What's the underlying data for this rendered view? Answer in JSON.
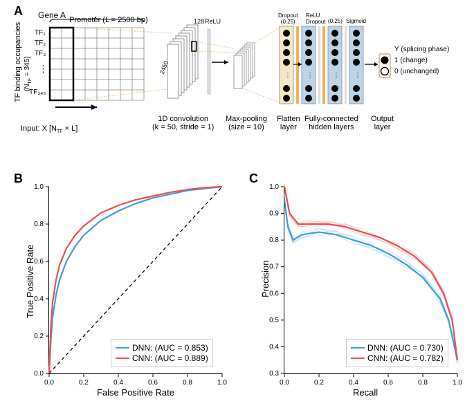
{
  "panelA": {
    "label": "A",
    "gene": "Gene A",
    "promoter": "Promoter (L = 2500 bp)",
    "y_axis_label": "TF binding occupancies\n(N_TF = 345)",
    "tf_rows": [
      "TF₁",
      "TF₂",
      "TF₃",
      "⋮",
      "TF₃₄₅"
    ],
    "input_label": "Input: X [N_TF × L]",
    "relu": "ReLU",
    "conv_dim1": "2450",
    "conv_dim2": "128",
    "conv_label": "1D convolution\n(k = 50, stride = 1)",
    "pool_label": "Max-pooling\n(size = 10)",
    "top_labels": [
      "Dropout\n(0.25)",
      "ReLU\nDropout",
      "(0.25)",
      "Sigmoid"
    ],
    "stage_labels": [
      "Flatten\nlayer",
      "Fully-connected\nhidden layers",
      "Output\nlayer"
    ],
    "output_y": "Y (splicing phase)",
    "output_1": "1 (change)",
    "output_0": "0 (unchanged)"
  },
  "panelB": {
    "label": "B",
    "xlabel": "False Positive Rate",
    "ylabel": "True Positive Rate",
    "xlim": [
      0,
      1
    ],
    "ylim": [
      0,
      1
    ],
    "ticks": [
      0.0,
      0.2,
      0.4,
      0.6,
      0.8,
      1.0
    ],
    "dnn": {
      "color": "#3e9cdf",
      "label": "DNN: (AUC = 0.853)",
      "points": [
        [
          0,
          0
        ],
        [
          0.01,
          0.18
        ],
        [
          0.02,
          0.3
        ],
        [
          0.04,
          0.42
        ],
        [
          0.06,
          0.5
        ],
        [
          0.1,
          0.6
        ],
        [
          0.15,
          0.68
        ],
        [
          0.2,
          0.74
        ],
        [
          0.3,
          0.82
        ],
        [
          0.4,
          0.87
        ],
        [
          0.5,
          0.91
        ],
        [
          0.6,
          0.94
        ],
        [
          0.7,
          0.96
        ],
        [
          0.8,
          0.98
        ],
        [
          0.9,
          0.99
        ],
        [
          1.0,
          1.0
        ]
      ]
    },
    "cnn": {
      "color": "#ee4d4d",
      "label": "CNN: (AUC = 0.889)",
      "points": [
        [
          0,
          0
        ],
        [
          0.01,
          0.25
        ],
        [
          0.02,
          0.38
        ],
        [
          0.04,
          0.5
        ],
        [
          0.06,
          0.58
        ],
        [
          0.1,
          0.67
        ],
        [
          0.15,
          0.74
        ],
        [
          0.2,
          0.79
        ],
        [
          0.3,
          0.86
        ],
        [
          0.4,
          0.9
        ],
        [
          0.5,
          0.93
        ],
        [
          0.6,
          0.95
        ],
        [
          0.7,
          0.97
        ],
        [
          0.8,
          0.985
        ],
        [
          0.9,
          0.995
        ],
        [
          1.0,
          1.0
        ]
      ]
    }
  },
  "panelC": {
    "label": "C",
    "xlabel": "Recall",
    "ylabel": "Precision",
    "xlim": [
      0,
      1
    ],
    "ylim": [
      0.3,
      1.0
    ],
    "yticks": [
      0.3,
      0.4,
      0.5,
      0.6,
      0.7,
      0.8,
      0.9,
      1.0
    ],
    "xticks": [
      0.0,
      0.2,
      0.4,
      0.6,
      0.8,
      1.0
    ],
    "dnn": {
      "color": "#3e9cdf",
      "label": "DNN: (AUC = 0.730)",
      "points": [
        [
          0.0,
          0.95
        ],
        [
          0.02,
          0.85
        ],
        [
          0.05,
          0.8
        ],
        [
          0.1,
          0.82
        ],
        [
          0.2,
          0.83
        ],
        [
          0.3,
          0.82
        ],
        [
          0.4,
          0.8
        ],
        [
          0.5,
          0.78
        ],
        [
          0.6,
          0.75
        ],
        [
          0.7,
          0.71
        ],
        [
          0.8,
          0.66
        ],
        [
          0.9,
          0.58
        ],
        [
          0.95,
          0.5
        ],
        [
          1.0,
          0.35
        ]
      ]
    },
    "cnn": {
      "color": "#ee4d4d",
      "label": "CNN: (AUC = 0.782)",
      "points": [
        [
          0.0,
          1.0
        ],
        [
          0.03,
          0.9
        ],
        [
          0.08,
          0.86
        ],
        [
          0.15,
          0.86
        ],
        [
          0.25,
          0.86
        ],
        [
          0.35,
          0.85
        ],
        [
          0.45,
          0.83
        ],
        [
          0.55,
          0.81
        ],
        [
          0.65,
          0.78
        ],
        [
          0.75,
          0.74
        ],
        [
          0.85,
          0.68
        ],
        [
          0.92,
          0.6
        ],
        [
          0.97,
          0.5
        ],
        [
          1.0,
          0.35
        ]
      ]
    }
  },
  "colors": {
    "grid": "#7f7f7f",
    "dotted": "#f0b060",
    "nn_rect": "#bcd4e8",
    "nn_rect_warm": "#f5e7c8",
    "black": "#000000"
  }
}
